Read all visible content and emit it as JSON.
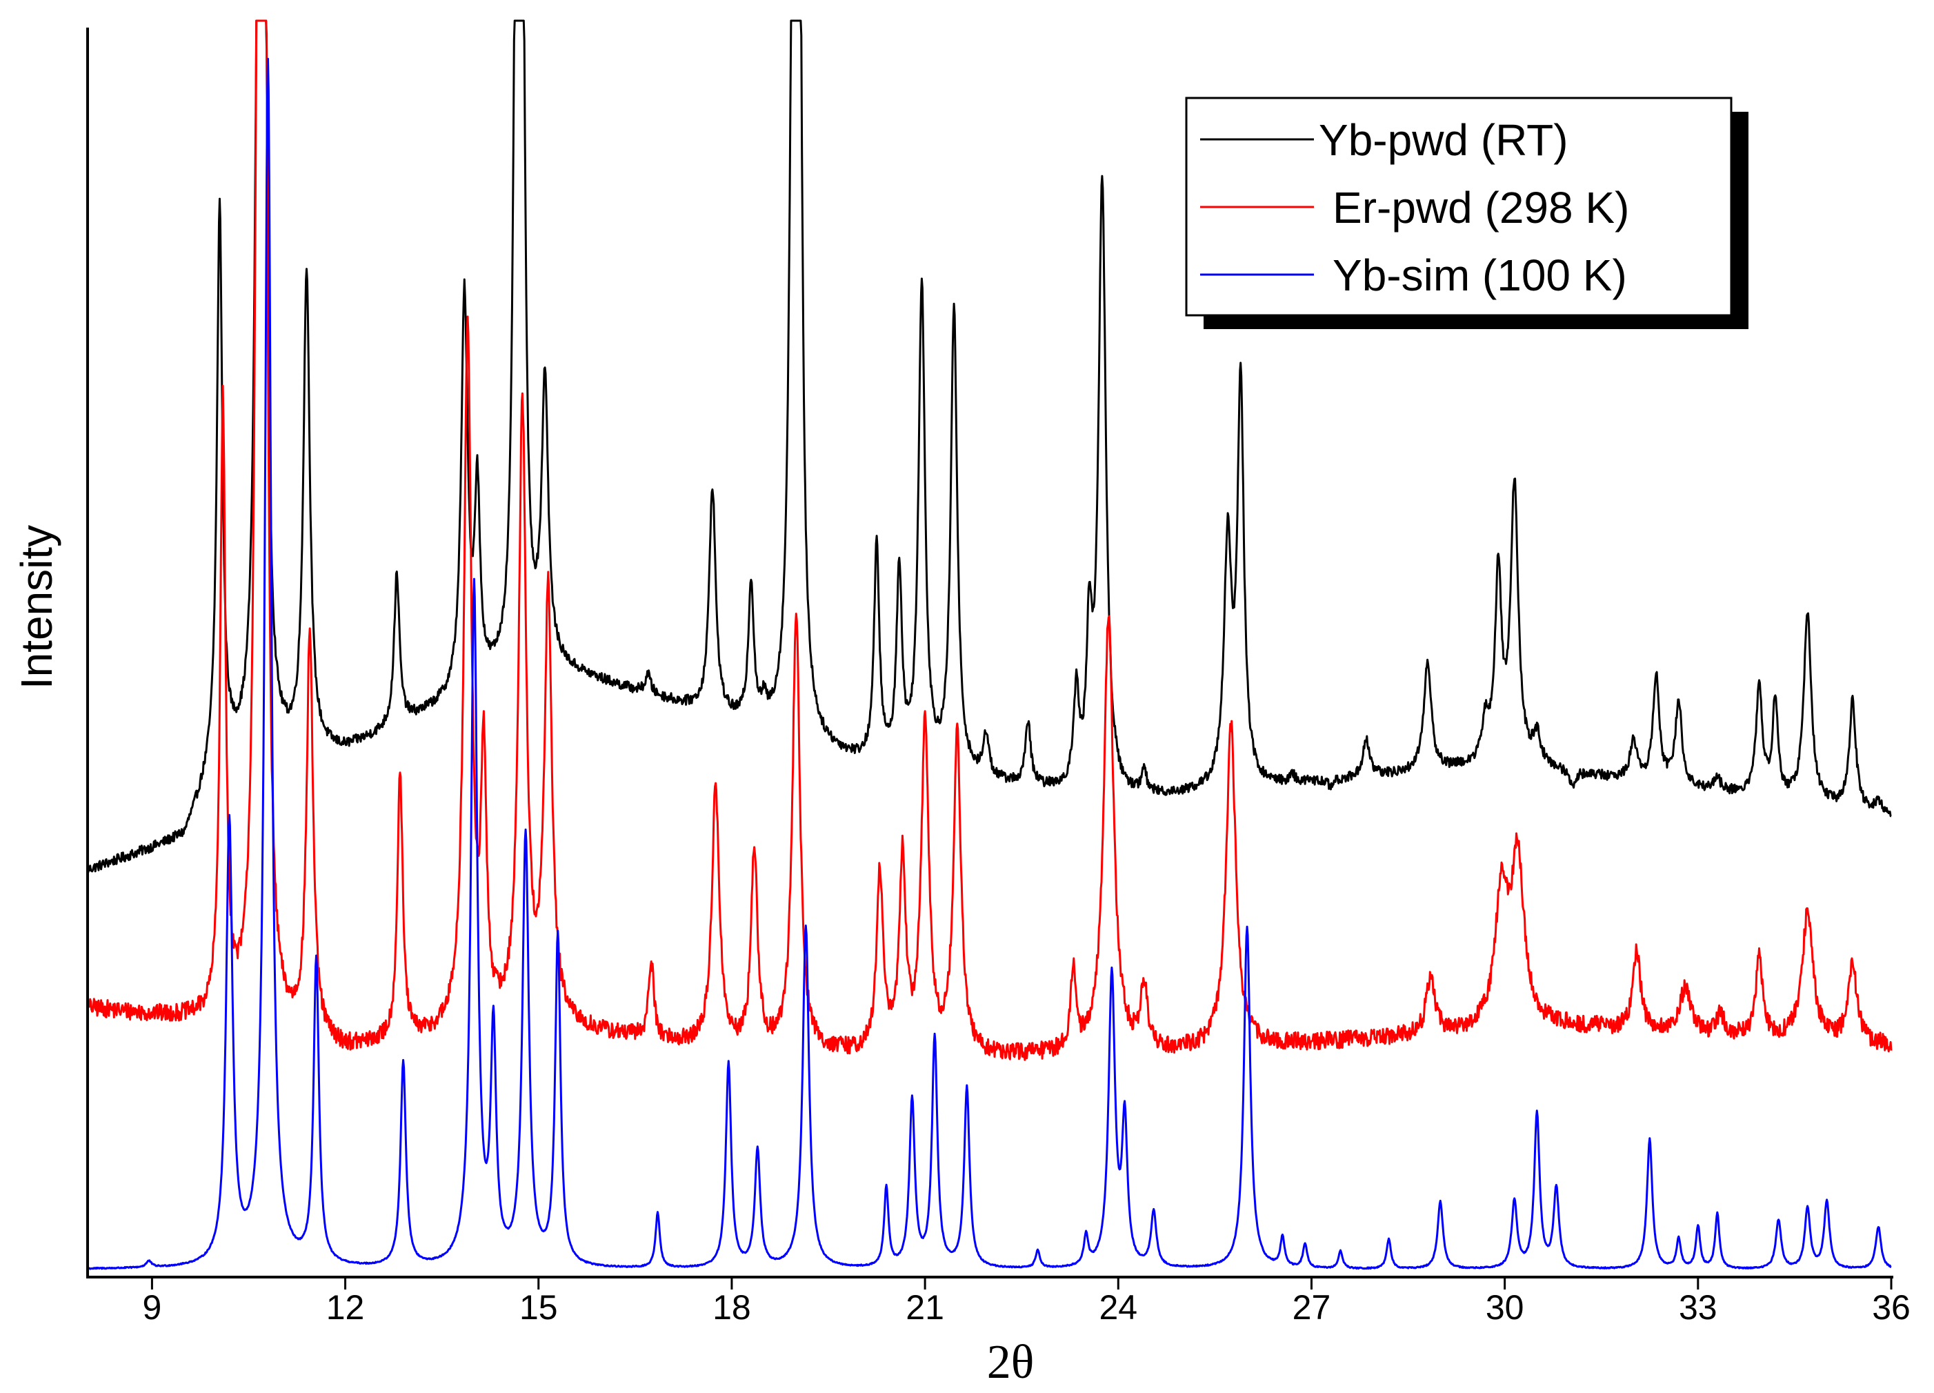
{
  "chart_data": {
    "type": "line",
    "title": "",
    "xlabel": "2θ",
    "ylabel": "Intensity",
    "xlim": [
      8,
      36
    ],
    "xticks": [
      9,
      12,
      15,
      18,
      21,
      24,
      27,
      30,
      33,
      36
    ],
    "yticks_shown": false,
    "grid": false,
    "legend_position": "top-right",
    "series": [
      {
        "name": "Yb-pwd (RT)",
        "color": "#000000",
        "baseline": [
          [
            8,
            0.325
          ],
          [
            9.5,
            0.35
          ],
          [
            10,
            0.41
          ],
          [
            12,
            0.42
          ],
          [
            15,
            0.49
          ],
          [
            17,
            0.46
          ],
          [
            20,
            0.41
          ],
          [
            24,
            0.38
          ],
          [
            30,
            0.41
          ],
          [
            36,
            0.37
          ]
        ],
        "peaks": [
          [
            10.05,
            0.85,
            0.05
          ],
          [
            10.65,
            1.06,
            0.06
          ],
          [
            10.75,
            1.02,
            0.05
          ],
          [
            11.4,
            0.8,
            0.06
          ],
          [
            12.8,
            0.56,
            0.05
          ],
          [
            13.85,
            0.78,
            0.06
          ],
          [
            14.05,
            0.62,
            0.05
          ],
          [
            14.65,
            1.06,
            0.05
          ],
          [
            14.75,
            1.06,
            0.05
          ],
          [
            15.1,
            0.71,
            0.06
          ],
          [
            16.7,
            0.48,
            0.05
          ],
          [
            17.7,
            0.63,
            0.06
          ],
          [
            18.3,
            0.55,
            0.05
          ],
          [
            18.5,
            0.45,
            0.04
          ],
          [
            18.95,
            1.06,
            0.06
          ],
          [
            19.05,
            1.04,
            0.05
          ],
          [
            20.25,
            0.58,
            0.05
          ],
          [
            20.6,
            0.56,
            0.05
          ],
          [
            20.95,
            0.79,
            0.06
          ],
          [
            21.45,
            0.77,
            0.06
          ],
          [
            21.95,
            0.43,
            0.05
          ],
          [
            22.6,
            0.44,
            0.05
          ],
          [
            23.35,
            0.46,
            0.05
          ],
          [
            23.55,
            0.5,
            0.05
          ],
          [
            23.75,
            0.87,
            0.07
          ],
          [
            24.4,
            0.4,
            0.05
          ],
          [
            25.7,
            0.58,
            0.07
          ],
          [
            25.9,
            0.71,
            0.06
          ],
          [
            26.7,
            0.4,
            0.05
          ],
          [
            27.3,
            0.39,
            0.05
          ],
          [
            27.85,
            0.43,
            0.06
          ],
          [
            28.8,
            0.49,
            0.07
          ],
          [
            29.7,
            0.44,
            0.06
          ],
          [
            29.9,
            0.56,
            0.06
          ],
          [
            30.15,
            0.63,
            0.07
          ],
          [
            30.5,
            0.43,
            0.07
          ],
          [
            31.05,
            0.39,
            0.05
          ],
          [
            32.0,
            0.43,
            0.06
          ],
          [
            32.35,
            0.48,
            0.06
          ],
          [
            32.7,
            0.46,
            0.06
          ],
          [
            33.3,
            0.4,
            0.05
          ],
          [
            33.95,
            0.47,
            0.06
          ],
          [
            34.2,
            0.46,
            0.05
          ],
          [
            34.7,
            0.53,
            0.07
          ],
          [
            35.4,
            0.46,
            0.06
          ],
          [
            35.8,
            0.38,
            0.05
          ]
        ]
      },
      {
        "name": "Er-pwd (298 K)",
        "color": "#ff0000",
        "baseline": [
          [
            8,
            0.215
          ],
          [
            9.5,
            0.205
          ],
          [
            10,
            0.2
          ],
          [
            12,
            0.18
          ],
          [
            15,
            0.2
          ],
          [
            18,
            0.18
          ],
          [
            22,
            0.175
          ],
          [
            25,
            0.18
          ],
          [
            28,
            0.19
          ],
          [
            31,
            0.2
          ],
          [
            36,
            0.185
          ]
        ],
        "peaks": [
          [
            10.1,
            0.69,
            0.05
          ],
          [
            10.65,
            1.06,
            0.06
          ],
          [
            10.75,
            1.06,
            0.05
          ],
          [
            11.45,
            0.51,
            0.06
          ],
          [
            12.85,
            0.4,
            0.05
          ],
          [
            13.9,
            0.75,
            0.07
          ],
          [
            14.15,
            0.4,
            0.05
          ],
          [
            14.75,
            0.69,
            0.07
          ],
          [
            15.15,
            0.54,
            0.07
          ],
          [
            16.75,
            0.25,
            0.05
          ],
          [
            17.75,
            0.39,
            0.07
          ],
          [
            18.35,
            0.34,
            0.06
          ],
          [
            19.0,
            0.53,
            0.07
          ],
          [
            20.3,
            0.32,
            0.06
          ],
          [
            20.65,
            0.33,
            0.06
          ],
          [
            21.0,
            0.44,
            0.07
          ],
          [
            21.5,
            0.43,
            0.07
          ],
          [
            23.3,
            0.24,
            0.05
          ],
          [
            23.85,
            0.53,
            0.09
          ],
          [
            24.4,
            0.23,
            0.06
          ],
          [
            25.75,
            0.44,
            0.09
          ],
          [
            28.85,
            0.24,
            0.08
          ],
          [
            29.95,
            0.3,
            0.12
          ],
          [
            30.2,
            0.33,
            0.12
          ],
          [
            32.05,
            0.26,
            0.07
          ],
          [
            32.8,
            0.23,
            0.1
          ],
          [
            33.35,
            0.21,
            0.06
          ],
          [
            33.95,
            0.26,
            0.06
          ],
          [
            34.7,
            0.29,
            0.1
          ],
          [
            35.4,
            0.25,
            0.08
          ]
        ]
      },
      {
        "name": "Yb-sim (100 K)",
        "color": "#0000ff",
        "baseline": [
          [
            8,
            0.006
          ],
          [
            36,
            0.006
          ]
        ],
        "peaks": [
          [
            8.95,
            0.011,
            0.05
          ],
          [
            10.2,
            0.36,
            0.06
          ],
          [
            10.8,
            0.97,
            0.06
          ],
          [
            11.55,
            0.25,
            0.05
          ],
          [
            12.9,
            0.17,
            0.05
          ],
          [
            14.0,
            0.55,
            0.06
          ],
          [
            14.3,
            0.19,
            0.05
          ],
          [
            14.8,
            0.35,
            0.06
          ],
          [
            15.3,
            0.27,
            0.05
          ],
          [
            16.85,
            0.05,
            0.04
          ],
          [
            17.95,
            0.17,
            0.05
          ],
          [
            18.4,
            0.1,
            0.05
          ],
          [
            19.15,
            0.28,
            0.06
          ],
          [
            20.4,
            0.07,
            0.04
          ],
          [
            20.8,
            0.14,
            0.05
          ],
          [
            21.15,
            0.19,
            0.05
          ],
          [
            21.65,
            0.15,
            0.05
          ],
          [
            22.75,
            0.02,
            0.04
          ],
          [
            23.5,
            0.03,
            0.04
          ],
          [
            23.9,
            0.24,
            0.06
          ],
          [
            24.1,
            0.12,
            0.05
          ],
          [
            24.55,
            0.05,
            0.05
          ],
          [
            26.0,
            0.28,
            0.06
          ],
          [
            26.55,
            0.03,
            0.04
          ],
          [
            26.9,
            0.025,
            0.04
          ],
          [
            27.45,
            0.02,
            0.04
          ],
          [
            28.2,
            0.03,
            0.04
          ],
          [
            29.0,
            0.06,
            0.05
          ],
          [
            30.15,
            0.06,
            0.05
          ],
          [
            30.5,
            0.13,
            0.05
          ],
          [
            30.8,
            0.07,
            0.05
          ],
          [
            32.25,
            0.11,
            0.05
          ],
          [
            32.7,
            0.03,
            0.04
          ],
          [
            33.0,
            0.04,
            0.04
          ],
          [
            33.3,
            0.05,
            0.04
          ],
          [
            34.25,
            0.045,
            0.05
          ],
          [
            34.7,
            0.055,
            0.05
          ],
          [
            35.0,
            0.06,
            0.05
          ],
          [
            35.8,
            0.04,
            0.05
          ]
        ]
      }
    ]
  }
}
